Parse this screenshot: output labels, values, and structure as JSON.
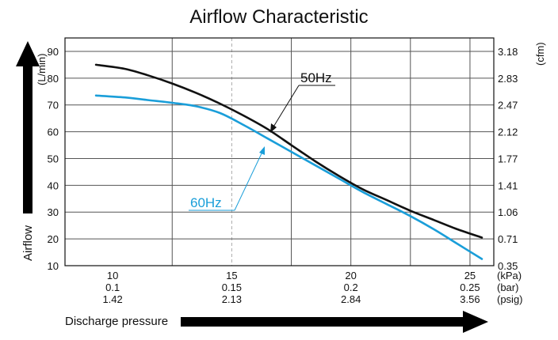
{
  "chart_data": {
    "type": "line",
    "title": "Airflow Characteristic",
    "xlabel": "Discharge pressure",
    "ylabel": "Airflow",
    "ylabel_left_unit": "(L/min)",
    "ylabel_right_unit": "(cfm)",
    "xlim": [
      8,
      26
    ],
    "ylim": [
      10,
      95
    ],
    "grid": true,
    "x_ticks": [
      10,
      15,
      20,
      25
    ],
    "x_ticks_bar": [
      "0.1",
      "0.15",
      "0.2",
      "0.25"
    ],
    "x_ticks_psig": [
      "1.42",
      "2.13",
      "2.84",
      "3.56"
    ],
    "x_units": [
      "(kPa)",
      "(bar)",
      "(psig)"
    ],
    "y_ticks": [
      10,
      20,
      30,
      40,
      50,
      60,
      70,
      80,
      90
    ],
    "y_ticks_cfm": [
      "0.35",
      "0.71",
      "1.06",
      "1.41",
      "1.77",
      "2.12",
      "2.47",
      "2.83",
      "3.18"
    ],
    "series": [
      {
        "name": "50Hz",
        "color": "#111111",
        "x": [
          9.3,
          10.5,
          11.5,
          12.5,
          13.5,
          14.5,
          15.5,
          16.5,
          17.5,
          18.5,
          19.5,
          20.5,
          21.5,
          22.5,
          23.5,
          24.5,
          25.5
        ],
        "y": [
          85,
          83.5,
          81,
          78,
          74.5,
          70.5,
          66,
          61,
          55,
          49,
          43.5,
          38.5,
          34.5,
          30.5,
          27,
          23.5,
          20.5
        ]
      },
      {
        "name": "60Hz",
        "color": "#1a9ed9",
        "x": [
          9.3,
          10.5,
          11.5,
          12.5,
          13.5,
          14.5,
          15.5,
          16.5,
          17.5,
          18.5,
          19.5,
          20.5,
          21.5,
          22.5,
          23.5,
          24.5,
          25.5
        ],
        "y": [
          73.5,
          72.8,
          71.8,
          70.8,
          69.5,
          67,
          62.5,
          57.5,
          52.5,
          47.5,
          42.5,
          37.5,
          33,
          28.5,
          23.5,
          18,
          12.5
        ]
      }
    ]
  }
}
